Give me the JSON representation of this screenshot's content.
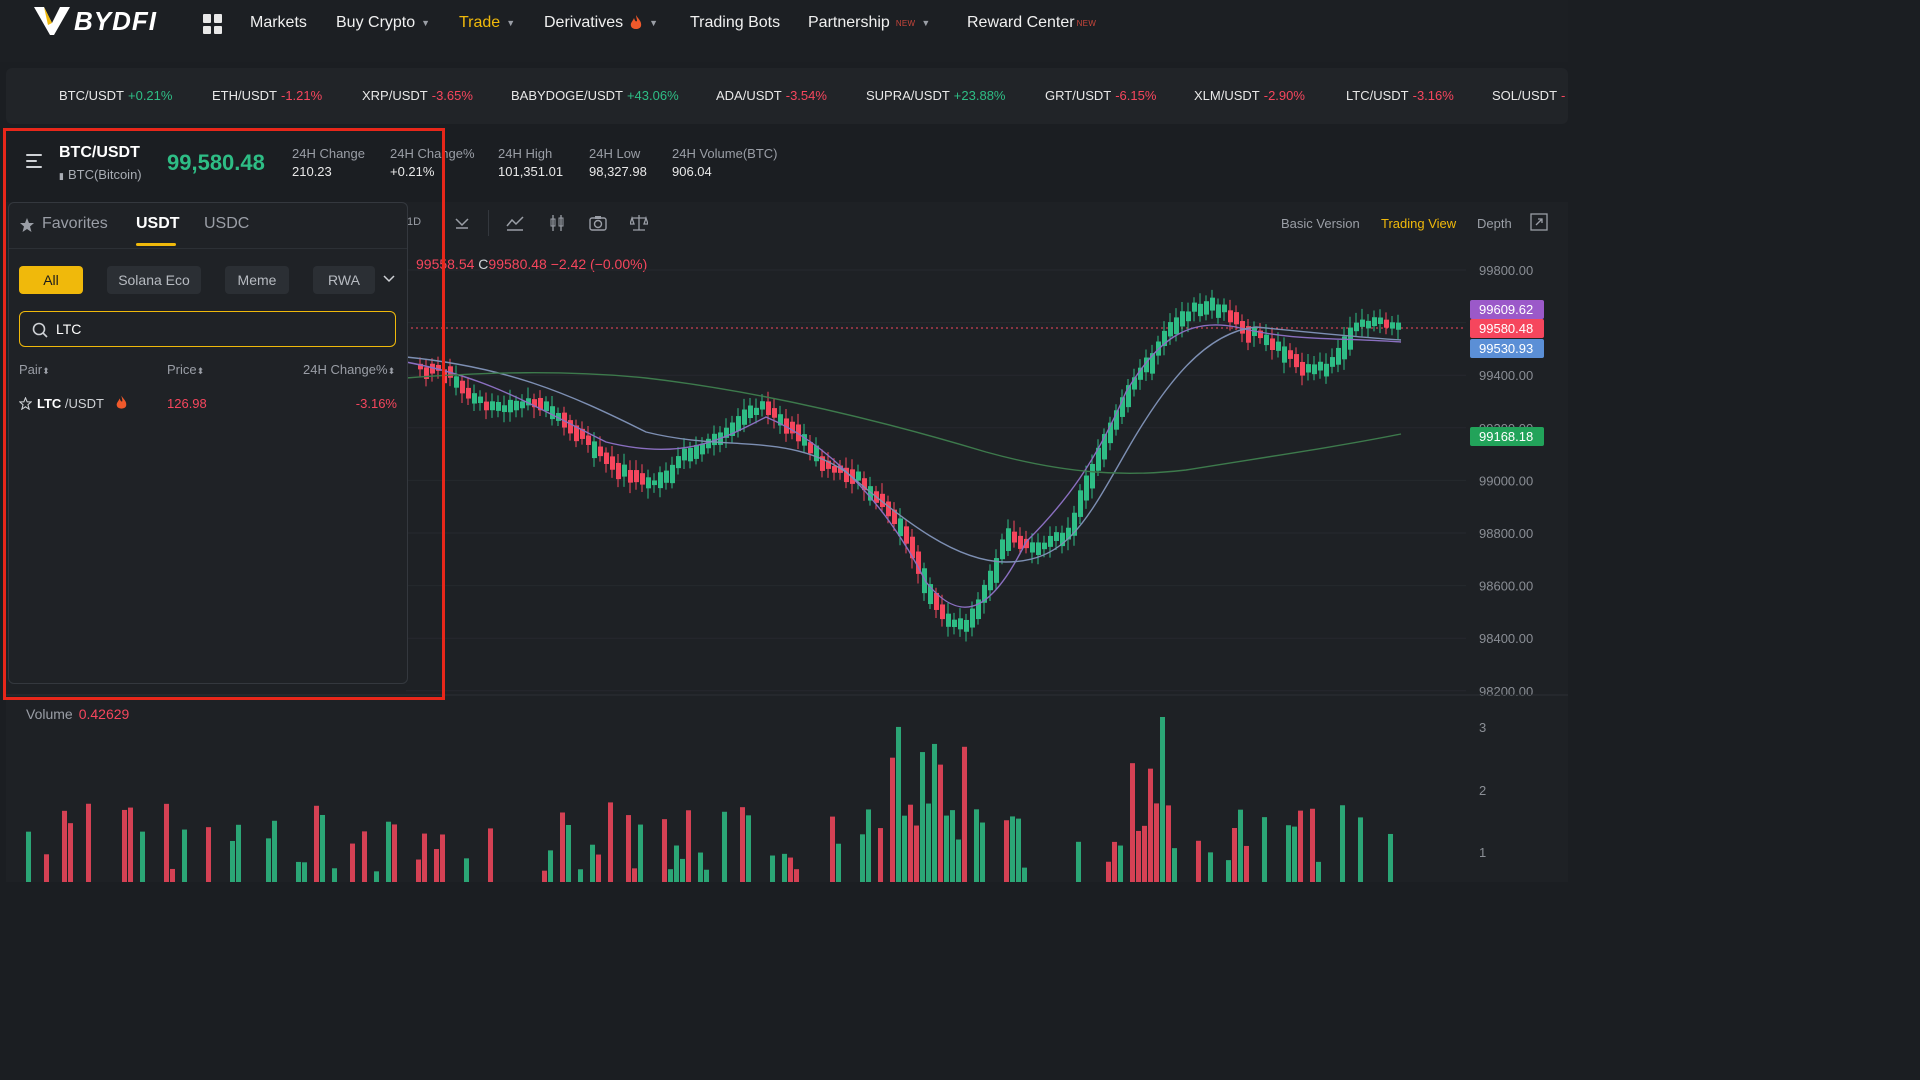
{
  "brand": "BYDFI",
  "nav": {
    "markets": "Markets",
    "buy_crypto": "Buy Crypto",
    "trade": "Trade",
    "derivatives": "Derivatives",
    "trading_bots": "Trading Bots",
    "partnership": "Partnership",
    "partnership_tag": "NEW",
    "reward_center": "Reward Center",
    "reward_tag": "NEW"
  },
  "ticker": [
    {
      "pair": "BTC/USDT",
      "change": "+0.21%",
      "dir": "up"
    },
    {
      "pair": "ETH/USDT",
      "change": "-1.21%",
      "dir": "down"
    },
    {
      "pair": "XRP/USDT",
      "change": "-3.65%",
      "dir": "down"
    },
    {
      "pair": "BABYDOGE/USDT",
      "change": "+43.06%",
      "dir": "up"
    },
    {
      "pair": "ADA/USDT",
      "change": "-3.54%",
      "dir": "down"
    },
    {
      "pair": "SUPRA/USDT",
      "change": "+23.88%",
      "dir": "up"
    },
    {
      "pair": "GRT/USDT",
      "change": "-6.15%",
      "dir": "down"
    },
    {
      "pair": "XLM/USDT",
      "change": "-2.90%",
      "dir": "down"
    },
    {
      "pair": "LTC/USDT",
      "change": "-3.16%",
      "dir": "down"
    },
    {
      "pair": "SOL/USDT",
      "change": "-",
      "dir": "down"
    }
  ],
  "pair": {
    "symbol": "BTC/USDT",
    "name": "BTC(Bitcoin)",
    "price": "99,580.48",
    "stats": {
      "change_label": "24H Change",
      "change": "210.23",
      "changepct_label": "24H Change%",
      "changepct": "+0.21%",
      "high_label": "24H High",
      "high": "101,351.01",
      "low_label": "24H Low",
      "low": "98,327.98",
      "vol_label": "24H Volume(BTC)",
      "vol": "906.04"
    }
  },
  "chart_toolbar": {
    "interval_label": "1D",
    "basic": "Basic Version",
    "trading_view": "Trading View",
    "depth": "Depth"
  },
  "chart": {
    "ohlc_prefix": "99558.54",
    "close_label": "C",
    "close": "99580.48",
    "delta": "−2.42 (−0.00%)",
    "y_ticks": [
      "99800.00",
      "99600.00",
      "99400.00",
      "99200.00",
      "99000.00",
      "98800.00",
      "98600.00",
      "98400.00",
      "98200.00"
    ],
    "price_tags": [
      {
        "value": "99609.62",
        "color": "#9b59c9"
      },
      {
        "value": "99580.48",
        "color": "#f6465d"
      },
      {
        "value": "99530.93",
        "color": "#5b8fd6"
      },
      {
        "value": "99168.18",
        "color": "#22a35a"
      }
    ],
    "volume_label": "Volume",
    "volume_value": "0.42629",
    "volume_ticks": [
      "3",
      "2",
      "1"
    ]
  },
  "market_panel": {
    "tab_favorites": "Favorites",
    "tab_usdt": "USDT",
    "tab_usdc": "USDC",
    "chips": [
      "All",
      "Solana Eco",
      "Meme",
      "RWA"
    ],
    "search_value": "LTC",
    "col_pair": "Pair",
    "col_price": "Price",
    "col_change": "24H Change%",
    "results": [
      {
        "base": "LTC",
        "quote": " /USDT",
        "price": "126.98",
        "change": "-3.16%"
      }
    ]
  },
  "colors": {
    "accent": "#f0b90b",
    "up": "#2ebd85",
    "down": "#f6465d",
    "highlight": "#e8271a"
  }
}
